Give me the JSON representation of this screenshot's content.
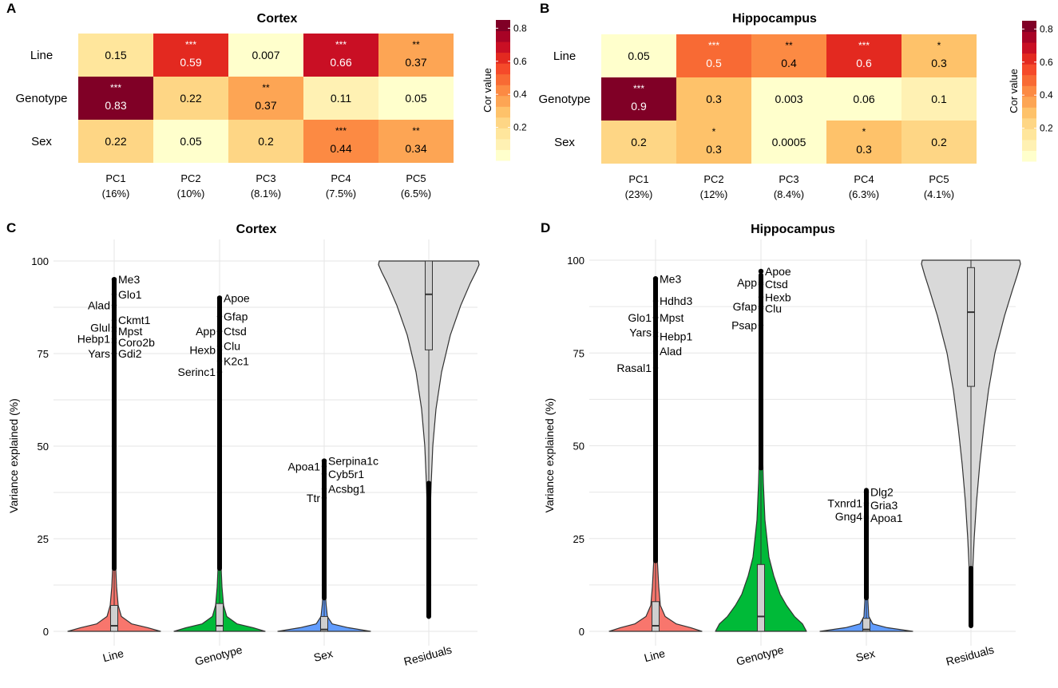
{
  "palette": {
    "heat_bins": [
      "#ffffcc",
      "#fff1b3",
      "#ffe69c",
      "#fed685",
      "#fec26a",
      "#fda554",
      "#fc8a43",
      "#f86a34",
      "#f54a2a",
      "#e32920",
      "#c90f24",
      "#a80326",
      "#800026"
    ],
    "violin_colors": [
      "#f8766d",
      "#00ba38",
      "#619cff",
      "#d9d9d9"
    ]
  },
  "panels": {
    "A": {
      "letter": "A",
      "title": "Cortex"
    },
    "B": {
      "letter": "B",
      "title": "Hippocampus"
    },
    "C": {
      "letter": "C",
      "title": "Cortex"
    },
    "D": {
      "letter": "D",
      "title": "Hippocampus"
    }
  },
  "colorbar": {
    "title": "Cor value",
    "ticks": [
      "0.2",
      "0.4",
      "0.6",
      "0.8"
    ],
    "tick_values": [
      0.2,
      0.4,
      0.6,
      0.8
    ],
    "range": [
      0,
      0.85
    ]
  },
  "chart_data": [
    {
      "type": "heatmap",
      "title": "Cortex",
      "rows": [
        "Line",
        "Genotype",
        "Sex"
      ],
      "columns": [
        "PC1",
        "PC2",
        "PC3",
        "PC4",
        "PC5"
      ],
      "column_variance": [
        "(16%)",
        "(10%)",
        "(8.1%)",
        "(7.5%)",
        "(6.5%)"
      ],
      "values": [
        [
          0.15,
          0.59,
          0.007,
          0.66,
          0.37
        ],
        [
          0.83,
          0.22,
          0.37,
          0.11,
          0.05
        ],
        [
          0.22,
          0.05,
          0.2,
          0.44,
          0.34
        ]
      ],
      "labels": [
        [
          "0.15",
          "0.59",
          "0.007",
          "0.66",
          "0.37"
        ],
        [
          "0.83",
          "0.22",
          "0.37",
          "0.11",
          "0.05"
        ],
        [
          "0.22",
          "0.05",
          "0.2",
          "0.44",
          "0.34"
        ]
      ],
      "stars": [
        [
          "",
          "***",
          "",
          "***",
          "**"
        ],
        [
          "***",
          "",
          "**",
          "",
          ""
        ],
        [
          "",
          "",
          "",
          "***",
          "**"
        ]
      ],
      "legend_title": "Cor value"
    },
    {
      "type": "heatmap",
      "title": "Hippocampus",
      "rows": [
        "Line",
        "Genotype",
        "Sex"
      ],
      "columns": [
        "PC1",
        "PC2",
        "PC3",
        "PC4",
        "PC5"
      ],
      "column_variance": [
        "(23%)",
        "(12%)",
        "(8.4%)",
        "(6.3%)",
        "(4.1%)"
      ],
      "values": [
        [
          0.05,
          0.5,
          0.4,
          0.6,
          0.3
        ],
        [
          0.9,
          0.3,
          0.003,
          0.06,
          0.1
        ],
        [
          0.2,
          0.3,
          0.0005,
          0.3,
          0.2
        ]
      ],
      "labels": [
        [
          "0.05",
          "0.5",
          "0.4",
          "0.6",
          "0.3"
        ],
        [
          "0.9",
          "0.3",
          "0.003",
          "0.06",
          "0.1"
        ],
        [
          "0.2",
          "0.3",
          "0.0005",
          "0.3",
          "0.2"
        ]
      ],
      "stars": [
        [
          "",
          "***",
          "**",
          "***",
          "*"
        ],
        [
          "***",
          "",
          "",
          "",
          ""
        ],
        [
          "",
          "*",
          "",
          "*",
          ""
        ]
      ],
      "legend_title": "Cor value"
    },
    {
      "type": "violin",
      "title": "Cortex",
      "ylabel": "Variance explained (%)",
      "ylim": [
        0,
        100
      ],
      "yticks": [
        0,
        25,
        50,
        75,
        100
      ],
      "categories": [
        "Line",
        "Genotype",
        "Sex",
        "Residuals"
      ],
      "box": [
        {
          "q1": 0,
          "median": 1.5,
          "q3": 7,
          "whisker_high": 17
        },
        {
          "q1": 0,
          "median": 1.5,
          "q3": 7.5,
          "whisker_high": 17
        },
        {
          "q1": 0,
          "median": 0.5,
          "q3": 4,
          "whisker_high": 9
        },
        {
          "q1": 76,
          "median": 91,
          "q3": 100,
          "whisker_low": 40,
          "whisker_high": 100
        }
      ],
      "outlier_max": [
        95,
        90,
        46,
        4
      ],
      "gene_labels": [
        [
          {
            "gene": "Me3",
            "y": 95,
            "side": "right"
          },
          {
            "gene": "Glo1",
            "y": 91,
            "side": "right"
          },
          {
            "gene": "Alad",
            "y": 88,
            "side": "left"
          },
          {
            "gene": "Ckmt1",
            "y": 84,
            "side": "right"
          },
          {
            "gene": "Mpst",
            "y": 81,
            "side": "right"
          },
          {
            "gene": "Glul",
            "y": 82,
            "side": "left"
          },
          {
            "gene": "Coro2b",
            "y": 78,
            "side": "right"
          },
          {
            "gene": "Hebp1",
            "y": 79,
            "side": "left"
          },
          {
            "gene": "Gdi2",
            "y": 75,
            "side": "right"
          },
          {
            "gene": "Yars",
            "y": 75,
            "side": "left"
          }
        ],
        [
          {
            "gene": "Apoe",
            "y": 90,
            "side": "right"
          },
          {
            "gene": "Gfap",
            "y": 85,
            "side": "right"
          },
          {
            "gene": "App",
            "y": 81,
            "side": "left"
          },
          {
            "gene": "Ctsd",
            "y": 81,
            "side": "right"
          },
          {
            "gene": "Hexb",
            "y": 76,
            "side": "left"
          },
          {
            "gene": "Clu",
            "y": 77,
            "side": "right"
          },
          {
            "gene": "K2c1",
            "y": 73,
            "side": "right"
          },
          {
            "gene": "Serinc1",
            "y": 70,
            "side": "left"
          }
        ],
        [
          {
            "gene": "Serpina1c",
            "y": 46,
            "side": "right"
          },
          {
            "gene": "Apoa1",
            "y": 44.5,
            "side": "left"
          },
          {
            "gene": "Cyb5r1",
            "y": 42.5,
            "side": "right"
          },
          {
            "gene": "Acsbg1",
            "y": 38.5,
            "side": "right"
          },
          {
            "gene": "Ttr",
            "y": 36,
            "side": "left"
          }
        ],
        []
      ]
    },
    {
      "type": "violin",
      "title": "Hippocampus",
      "ylabel": "Variance explained (%)",
      "ylim": [
        0,
        100
      ],
      "yticks": [
        0,
        25,
        50,
        75,
        100
      ],
      "categories": [
        "Line",
        "Genotype",
        "Sex",
        "Residuals"
      ],
      "box": [
        {
          "q1": 0,
          "median": 1.5,
          "q3": 8,
          "whisker_high": 19
        },
        {
          "q1": 0,
          "median": 4,
          "q3": 18,
          "whisker_high": 44
        },
        {
          "q1": 0,
          "median": 0.5,
          "q3": 3.5,
          "whisker_high": 9
        },
        {
          "q1": 66,
          "median": 86,
          "q3": 98,
          "whisker_low": 17,
          "whisker_high": 100
        }
      ],
      "outlier_max": [
        95,
        96,
        38,
        1.5
      ],
      "gene_labels": [
        [
          {
            "gene": "Me3",
            "y": 95,
            "side": "right"
          },
          {
            "gene": "Hdhd3",
            "y": 89,
            "side": "right"
          },
          {
            "gene": "Glo1",
            "y": 84.5,
            "side": "left"
          },
          {
            "gene": "Mpst",
            "y": 84.5,
            "side": "right"
          },
          {
            "gene": "Yars",
            "y": 80.5,
            "side": "left"
          },
          {
            "gene": "Hebp1",
            "y": 79.5,
            "side": "right"
          },
          {
            "gene": "Alad",
            "y": 75.5,
            "side": "right"
          },
          {
            "gene": "Rasal1",
            "y": 71,
            "side": "left"
          }
        ],
        [
          {
            "gene": "Apoe",
            "y": 97,
            "side": "right"
          },
          {
            "gene": "App",
            "y": 94,
            "side": "left"
          },
          {
            "gene": "Ctsd",
            "y": 93.5,
            "side": "right"
          },
          {
            "gene": "Hexb",
            "y": 90,
            "side": "right"
          },
          {
            "gene": "Gfap",
            "y": 87.5,
            "side": "left"
          },
          {
            "gene": "Clu",
            "y": 87,
            "side": "right"
          },
          {
            "gene": "Psap",
            "y": 82.5,
            "side": "left"
          }
        ],
        [
          {
            "gene": "Dlg2",
            "y": 37.5,
            "side": "right"
          },
          {
            "gene": "Txnrd1",
            "y": 34.5,
            "side": "left"
          },
          {
            "gene": "Gria3",
            "y": 34,
            "side": "right"
          },
          {
            "gene": "Gng4",
            "y": 31,
            "side": "left"
          },
          {
            "gene": "Apoa1",
            "y": 30.5,
            "side": "right"
          }
        ],
        []
      ]
    }
  ]
}
